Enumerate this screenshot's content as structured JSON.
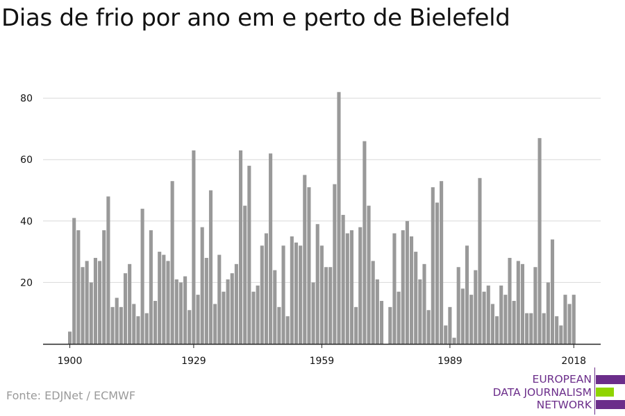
{
  "title": "Dias de frio por ano em e perto de Bielefeld",
  "source": "Fonte: EDJNet / ECMWF",
  "logo": {
    "lines": [
      "EUROPEAN",
      "DATA JOURNALISM",
      "NETWORK"
    ],
    "colors": {
      "purple": "#6b2d8a",
      "green": "#8fd400"
    }
  },
  "colors": {
    "bar": "#999999",
    "grid": "#d9d9d9",
    "axis": "#222222",
    "text": "#111111"
  },
  "chart_data": {
    "type": "bar",
    "title": "Dias de frio por ano em e perto de Bielefeld",
    "xlabel": "",
    "ylabel": "",
    "x_start": 1900,
    "x_ticks": [
      1900,
      1929,
      1959,
      1989,
      2018
    ],
    "y_ticks": [
      20,
      40,
      60,
      80
    ],
    "ylim": [
      0,
      85
    ],
    "grid": true,
    "years": [
      1900,
      1901,
      1902,
      1903,
      1904,
      1905,
      1906,
      1907,
      1908,
      1909,
      1910,
      1911,
      1912,
      1913,
      1914,
      1915,
      1916,
      1917,
      1918,
      1919,
      1920,
      1921,
      1922,
      1923,
      1924,
      1925,
      1926,
      1927,
      1928,
      1929,
      1930,
      1931,
      1932,
      1933,
      1934,
      1935,
      1936,
      1937,
      1938,
      1939,
      1940,
      1941,
      1942,
      1943,
      1944,
      1945,
      1946,
      1947,
      1948,
      1949,
      1950,
      1951,
      1952,
      1953,
      1954,
      1955,
      1956,
      1957,
      1958,
      1959,
      1960,
      1961,
      1962,
      1963,
      1964,
      1965,
      1966,
      1967,
      1968,
      1969,
      1970,
      1971,
      1972,
      1973,
      1974,
      1975,
      1976,
      1977,
      1978,
      1979,
      1980,
      1981,
      1982,
      1983,
      1984,
      1985,
      1986,
      1987,
      1988,
      1989,
      1990,
      1991,
      1992,
      1993,
      1994,
      1995,
      1996,
      1997,
      1998,
      1999,
      2000,
      2001,
      2002,
      2003,
      2004,
      2005,
      2006,
      2007,
      2008,
      2009,
      2010,
      2011,
      2012,
      2013,
      2014,
      2015,
      2016,
      2017,
      2018
    ],
    "values": [
      4,
      41,
      37,
      25,
      27,
      20,
      28,
      27,
      37,
      48,
      12,
      15,
      12,
      23,
      26,
      13,
      9,
      44,
      10,
      37,
      14,
      30,
      29,
      27,
      53,
      21,
      20,
      22,
      11,
      63,
      16,
      38,
      28,
      50,
      13,
      29,
      17,
      21,
      23,
      26,
      63,
      45,
      58,
      17,
      19,
      32,
      36,
      62,
      24,
      12,
      32,
      9,
      35,
      33,
      32,
      55,
      51,
      20,
      39,
      32,
      25,
      25,
      52,
      82,
      42,
      36,
      37,
      12,
      38,
      66,
      45,
      27,
      21,
      14,
      0,
      12,
      36,
      17,
      37,
      40,
      35,
      30,
      21,
      26,
      11,
      51,
      46,
      53,
      6,
      12,
      2,
      25,
      18,
      32,
      16,
      24,
      54,
      17,
      19,
      13,
      9,
      19,
      16,
      28,
      14,
      27,
      26,
      10,
      10,
      25,
      67,
      10,
      20,
      34,
      9,
      6,
      16,
      13,
      16
    ]
  }
}
